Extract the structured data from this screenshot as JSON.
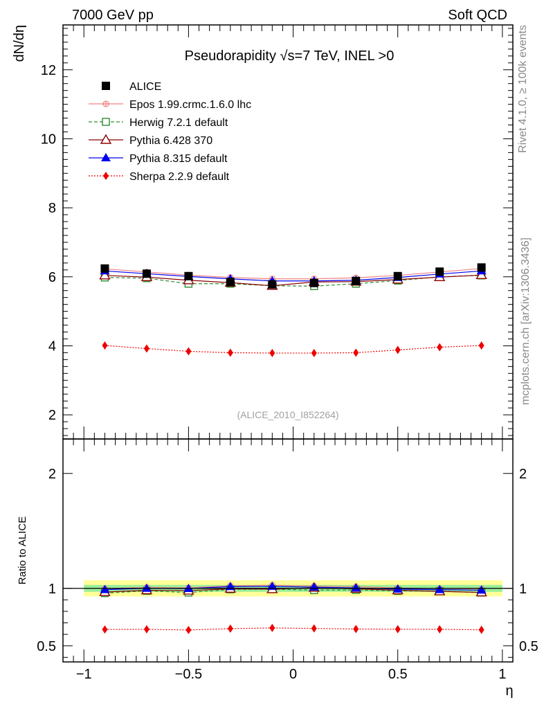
{
  "header": {
    "beam": "7000 GeV pp",
    "process": "Soft QCD"
  },
  "side_text": {
    "rivet": "Rivet 4.1.0, ≥ 100k events",
    "mcplots": "mcplots.cern.ch [arXiv:1306.3436]"
  },
  "chart_data": {
    "type": "line",
    "title": "Pseudorapidity √s=7 TeV, INEL >0",
    "analysis_id": "(ALICE_2010_I852264)",
    "xlabel": "η",
    "ylabel": "dN/dη",
    "ratio_ylabel": "Ratio to ALICE",
    "xlim": [
      -1.1,
      1.05
    ],
    "ylim": [
      1.3,
      13.3
    ],
    "ratio_ylim": [
      0.36,
      2.3
    ],
    "x_ticks": [
      -1,
      -0.5,
      0,
      0.5,
      1
    ],
    "x_tick_labels": [
      "−1",
      "−0.5",
      "0",
      "0.5",
      "1"
    ],
    "y_ticks": [
      2,
      4,
      6,
      8,
      10,
      12
    ],
    "y_tick_labels": [
      "2",
      "4",
      "6",
      "8",
      "10",
      "12"
    ],
    "ratio_ticks": [
      0.5,
      1,
      2
    ],
    "ratio_tick_labels": [
      "0.5",
      "1",
      "2"
    ],
    "x": [
      -0.9,
      -0.7,
      -0.5,
      -0.3,
      -0.1,
      0.1,
      0.3,
      0.5,
      0.7,
      0.9
    ],
    "reference": {
      "name": "ALICE",
      "values": [
        6.24,
        6.09,
        6.02,
        5.85,
        5.78,
        5.82,
        5.88,
        6.02,
        6.15,
        6.27
      ],
      "band_inner": 0.03,
      "band_outer": 0.07
    },
    "series": [
      {
        "name": "Epos 1.99.crmc.1.6.0 lhc",
        "color": "#f08080",
        "dash": "",
        "marker": "crossed-circle",
        "values": [
          6.23,
          6.14,
          6.05,
          5.98,
          5.94,
          5.94,
          5.97,
          6.04,
          6.14,
          6.24
        ]
      },
      {
        "name": "Herwig 7.2.1 default",
        "color": "#2e8b2e",
        "dash": "5,3",
        "marker": "open-square",
        "values": [
          5.98,
          5.96,
          5.8,
          5.8,
          5.74,
          5.73,
          5.8,
          5.89,
          6.0,
          6.04
        ]
      },
      {
        "name": "Pythia 6.428 370",
        "color": "#8b0000",
        "dash": "",
        "marker": "open-triangle",
        "values": [
          6.04,
          5.99,
          5.9,
          5.83,
          5.74,
          5.85,
          5.86,
          5.92,
          5.99,
          6.05
        ]
      },
      {
        "name": "Pythia 8.315 default",
        "color": "#0000ee",
        "dash": "",
        "marker": "filled-triangle",
        "values": [
          6.17,
          6.09,
          6.01,
          5.94,
          5.88,
          5.88,
          5.9,
          5.98,
          6.08,
          6.17
        ]
      },
      {
        "name": "Sherpa 2.2.9 default",
        "color": "#ee0000",
        "dash": "2,2",
        "marker": "filled-diamond",
        "values": [
          4.01,
          3.92,
          3.84,
          3.8,
          3.79,
          3.79,
          3.8,
          3.88,
          3.96,
          4.01
        ]
      }
    ]
  }
}
